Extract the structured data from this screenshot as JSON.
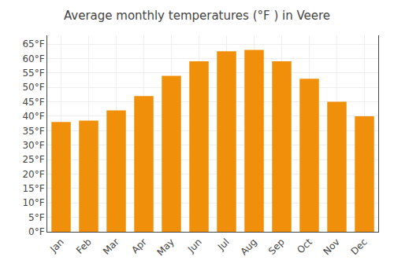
{
  "chart_data": {
    "type": "bar",
    "title": "Average monthly temperatures (°F ) in Veere",
    "categories": [
      "Jan",
      "Feb",
      "Mar",
      "Apr",
      "May",
      "Jun",
      "Jul",
      "Aug",
      "Sep",
      "Oct",
      "Nov",
      "Dec"
    ],
    "values": [
      38,
      38.5,
      42,
      47,
      54,
      59,
      62.5,
      63,
      59,
      53,
      45,
      40
    ],
    "color": "#F0900A",
    "ylim": [
      0,
      68
    ],
    "yticks": [
      {
        "value": 0,
        "label": "0°F"
      },
      {
        "value": 5,
        "label": "5°F"
      },
      {
        "value": 10,
        "label": "10°F"
      },
      {
        "value": 15,
        "label": "15°F"
      },
      {
        "value": 20,
        "label": "20°F"
      },
      {
        "value": 25,
        "label": "25°F"
      },
      {
        "value": 30,
        "label": "30°F"
      },
      {
        "value": 35,
        "label": "35°F"
      },
      {
        "value": 40,
        "label": "40°F"
      },
      {
        "value": 45,
        "label": "45°F"
      },
      {
        "value": 50,
        "label": "50°F"
      },
      {
        "value": 55,
        "label": "55°F"
      },
      {
        "value": 60,
        "label": "60°F"
      },
      {
        "value": 65,
        "label": "65°F"
      }
    ],
    "grid": true
  }
}
